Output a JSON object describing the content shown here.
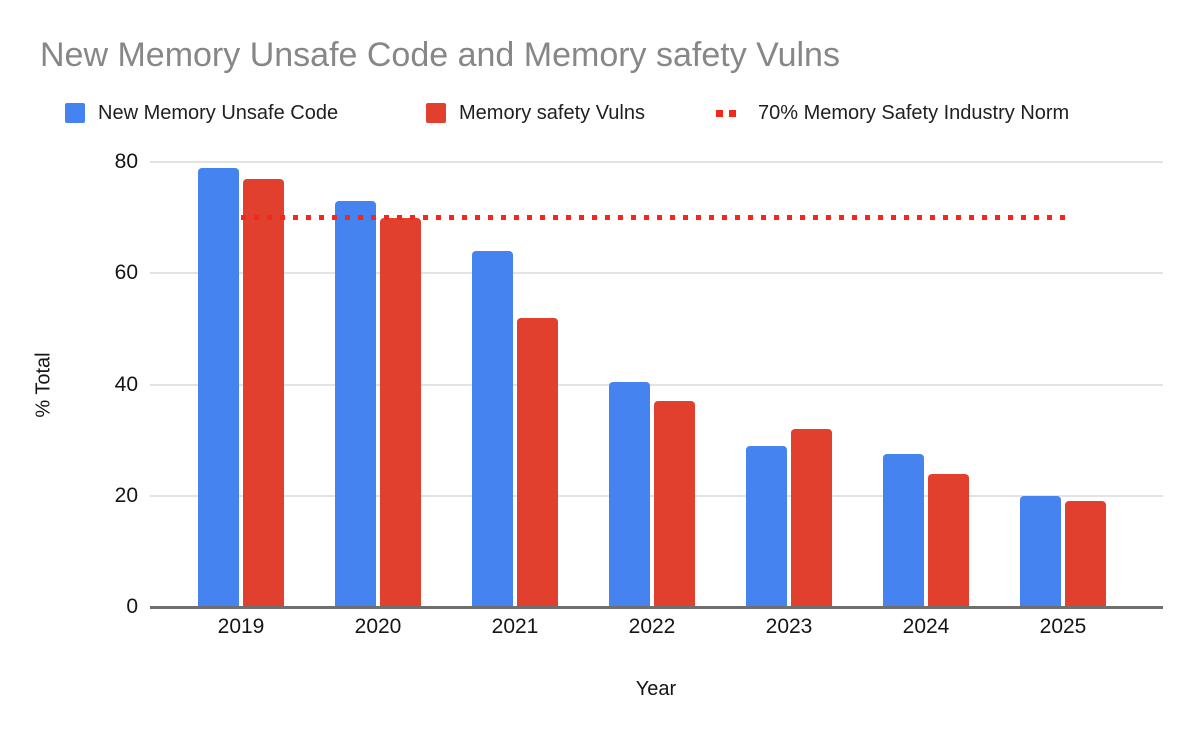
{
  "title": "New Memory Unsafe Code and Memory safety Vulns",
  "legend": [
    {
      "label": "New Memory Unsafe Code",
      "color": "#4584F0",
      "marker": "square"
    },
    {
      "label": "Memory safety Vulns",
      "color": "#E2402F",
      "marker": "square"
    },
    {
      "label": "70% Memory Safety Industry Norm",
      "color": "#F5261A",
      "marker": "dotted-line"
    }
  ],
  "chart_data": {
    "type": "bar",
    "categories": [
      "2019",
      "2020",
      "2021",
      "2022",
      "2023",
      "2024",
      "2025"
    ],
    "series": [
      {
        "name": "New Memory Unsafe Code",
        "color": "#4584F0",
        "values": [
          79,
          73,
          64,
          40.5,
          29,
          27.5,
          20
        ]
      },
      {
        "name": "Memory safety Vulns",
        "color": "#E2402F",
        "values": [
          77,
          70,
          52,
          37,
          32,
          24,
          19
        ]
      }
    ],
    "reference_line": {
      "label": "70% Memory Safety Industry Norm",
      "value": 70,
      "style": "dotted",
      "color": "#F5261A"
    },
    "title": "New Memory Unsafe Code and Memory safety Vulns",
    "xlabel": "Year",
    "ylabel": "% Total",
    "ylim": [
      0,
      80
    ],
    "yticks": [
      0,
      20,
      40,
      60,
      80
    ],
    "grid": true,
    "legend_position": "top"
  }
}
